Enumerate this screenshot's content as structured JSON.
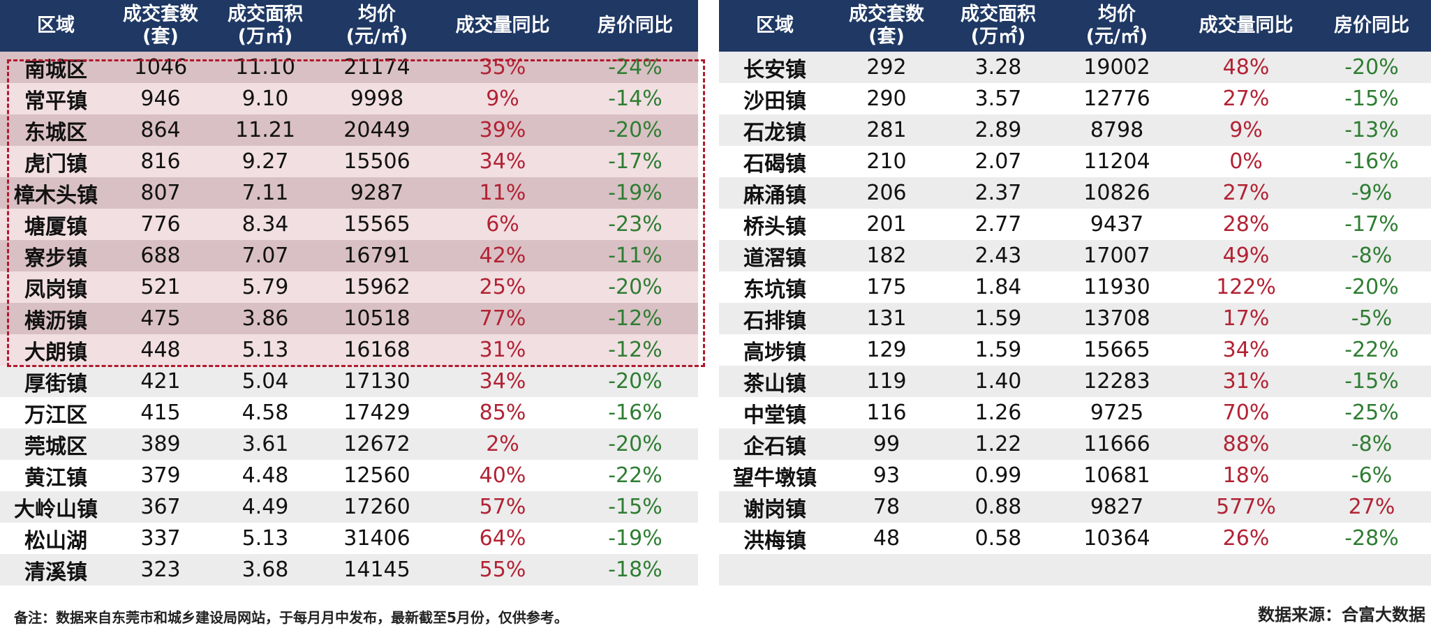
{
  "header": {
    "region": "区域",
    "count": [
      "成交套数",
      "(套)"
    ],
    "area": [
      "成交面积",
      "(万㎡)"
    ],
    "price": [
      "均价",
      "(元/㎡)"
    ],
    "volume_yoy": "成交量同比",
    "price_yoy": "房价同比"
  },
  "left_rows": [
    {
      "region": "南城区",
      "count": "1046",
      "area": "11.10",
      "price": "21174",
      "volume_yoy": "35%",
      "price_yoy": "-24%",
      "highlight": true
    },
    {
      "region": "常平镇",
      "count": "946",
      "area": "9.10",
      "price": "9998",
      "volume_yoy": "9%",
      "price_yoy": "-14%",
      "highlight": true
    },
    {
      "region": "东城区",
      "count": "864",
      "area": "11.21",
      "price": "20449",
      "volume_yoy": "39%",
      "price_yoy": "-20%",
      "highlight": true
    },
    {
      "region": "虎门镇",
      "count": "816",
      "area": "9.27",
      "price": "15506",
      "volume_yoy": "34%",
      "price_yoy": "-17%",
      "highlight": true
    },
    {
      "region": "樟木头镇",
      "count": "807",
      "area": "7.11",
      "price": "9287",
      "volume_yoy": "11%",
      "price_yoy": "-19%",
      "highlight": true
    },
    {
      "region": "塘厦镇",
      "count": "776",
      "area": "8.34",
      "price": "15565",
      "volume_yoy": "6%",
      "price_yoy": "-23%",
      "highlight": true
    },
    {
      "region": "寮步镇",
      "count": "688",
      "area": "7.07",
      "price": "16791",
      "volume_yoy": "42%",
      "price_yoy": "-11%",
      "highlight": true
    },
    {
      "region": "凤岗镇",
      "count": "521",
      "area": "5.79",
      "price": "15962",
      "volume_yoy": "25%",
      "price_yoy": "-20%",
      "highlight": true
    },
    {
      "region": "横沥镇",
      "count": "475",
      "area": "3.86",
      "price": "10518",
      "volume_yoy": "77%",
      "price_yoy": "-12%",
      "highlight": true
    },
    {
      "region": "大朗镇",
      "count": "448",
      "area": "5.13",
      "price": "16168",
      "volume_yoy": "31%",
      "price_yoy": "-12%",
      "highlight": true
    },
    {
      "region": "厚街镇",
      "count": "421",
      "area": "5.04",
      "price": "17130",
      "volume_yoy": "34%",
      "price_yoy": "-20%",
      "highlight": false
    },
    {
      "region": "万江区",
      "count": "415",
      "area": "4.58",
      "price": "17429",
      "volume_yoy": "85%",
      "price_yoy": "-16%",
      "highlight": false
    },
    {
      "region": "莞城区",
      "count": "389",
      "area": "3.61",
      "price": "12672",
      "volume_yoy": "2%",
      "price_yoy": "-20%",
      "highlight": false
    },
    {
      "region": "黄江镇",
      "count": "379",
      "area": "4.48",
      "price": "12560",
      "volume_yoy": "40%",
      "price_yoy": "-22%",
      "highlight": false
    },
    {
      "region": "大岭山镇",
      "count": "367",
      "area": "4.49",
      "price": "17260",
      "volume_yoy": "57%",
      "price_yoy": "-15%",
      "highlight": false
    },
    {
      "region": "松山湖",
      "count": "337",
      "area": "5.13",
      "price": "31406",
      "volume_yoy": "64%",
      "price_yoy": "-19%",
      "highlight": false
    },
    {
      "region": "清溪镇",
      "count": "323",
      "area": "3.68",
      "price": "14145",
      "volume_yoy": "55%",
      "price_yoy": "-18%",
      "highlight": false
    }
  ],
  "right_rows": [
    {
      "region": "长安镇",
      "count": "292",
      "area": "3.28",
      "price": "19002",
      "volume_yoy": "48%",
      "price_yoy": "-20%"
    },
    {
      "region": "沙田镇",
      "count": "290",
      "area": "3.57",
      "price": "12776",
      "volume_yoy": "27%",
      "price_yoy": "-15%"
    },
    {
      "region": "石龙镇",
      "count": "281",
      "area": "2.89",
      "price": "8798",
      "volume_yoy": "9%",
      "price_yoy": "-13%"
    },
    {
      "region": "石碣镇",
      "count": "210",
      "area": "2.07",
      "price": "11204",
      "volume_yoy": "0%",
      "price_yoy": "-16%"
    },
    {
      "region": "麻涌镇",
      "count": "206",
      "area": "2.37",
      "price": "10826",
      "volume_yoy": "27%",
      "price_yoy": "-9%"
    },
    {
      "region": "桥头镇",
      "count": "201",
      "area": "2.77",
      "price": "9437",
      "volume_yoy": "28%",
      "price_yoy": "-17%"
    },
    {
      "region": "道滘镇",
      "count": "182",
      "area": "2.43",
      "price": "17007",
      "volume_yoy": "49%",
      "price_yoy": "-8%"
    },
    {
      "region": "东坑镇",
      "count": "175",
      "area": "1.84",
      "price": "11930",
      "volume_yoy": "122%",
      "price_yoy": "-20%"
    },
    {
      "region": "石排镇",
      "count": "131",
      "area": "1.59",
      "price": "13708",
      "volume_yoy": "17%",
      "price_yoy": "-5%"
    },
    {
      "region": "高埗镇",
      "count": "129",
      "area": "1.59",
      "price": "15665",
      "volume_yoy": "34%",
      "price_yoy": "-22%"
    },
    {
      "region": "茶山镇",
      "count": "119",
      "area": "1.40",
      "price": "12283",
      "volume_yoy": "31%",
      "price_yoy": "-15%"
    },
    {
      "region": "中堂镇",
      "count": "116",
      "area": "1.26",
      "price": "9725",
      "volume_yoy": "70%",
      "price_yoy": "-25%"
    },
    {
      "region": "企石镇",
      "count": "99",
      "area": "1.22",
      "price": "11666",
      "volume_yoy": "88%",
      "price_yoy": "-8%"
    },
    {
      "region": "望牛墩镇",
      "count": "93",
      "area": "0.99",
      "price": "10681",
      "volume_yoy": "18%",
      "price_yoy": "-6%"
    },
    {
      "region": "谢岗镇",
      "count": "78",
      "area": "0.88",
      "price": "9827",
      "volume_yoy": "577%",
      "price_yoy": "27%"
    },
    {
      "region": "洪梅镇",
      "count": "48",
      "area": "0.58",
      "price": "10364",
      "volume_yoy": "26%",
      "price_yoy": "-28%"
    },
    {
      "region": "",
      "count": "",
      "area": "",
      "price": "",
      "volume_yoy": "",
      "price_yoy": ""
    }
  ],
  "footer": {
    "note": "备注：数据来自东莞市和城乡建设局网站，于每月月中发布，最新截至5月份，仅供参考。",
    "source": "数据来源：合富大数据"
  },
  "colors": {
    "header_bg": "#1f3864",
    "up": "#b22234",
    "down": "#2e7d32",
    "highlight_border": "#b2182b"
  }
}
